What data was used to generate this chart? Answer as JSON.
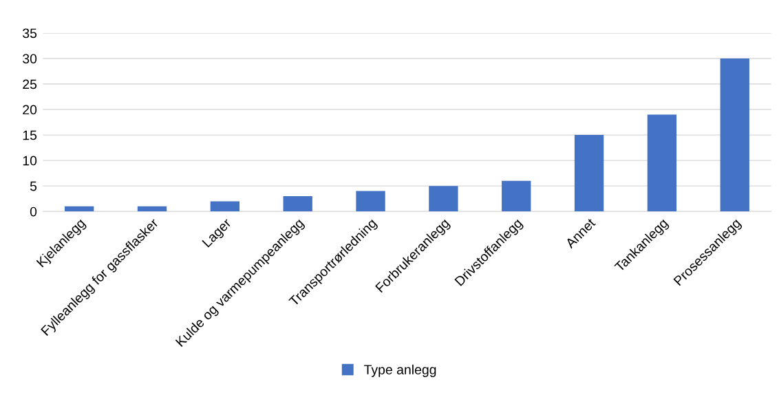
{
  "chart_data": {
    "type": "bar",
    "categories": [
      "Kjelanlegg",
      "Fylleanlegg for gassflasker",
      "Lager",
      "Kulde og varmepumpeanlegg",
      "Transportrørledning",
      "Forbrukeranlegg",
      "Drivstoffanlegg",
      "Annet",
      "Tankanlegg",
      "Prosessanlegg"
    ],
    "series": [
      {
        "name": "Type anlegg",
        "color": "#4472c4",
        "values": [
          1,
          1,
          2,
          3,
          4,
          5,
          6,
          15,
          19,
          30
        ]
      }
    ],
    "ylim": [
      0,
      35
    ],
    "yticks": [
      0,
      5,
      10,
      15,
      20,
      25,
      30,
      35
    ],
    "grid": "y",
    "legend": "bottom"
  }
}
